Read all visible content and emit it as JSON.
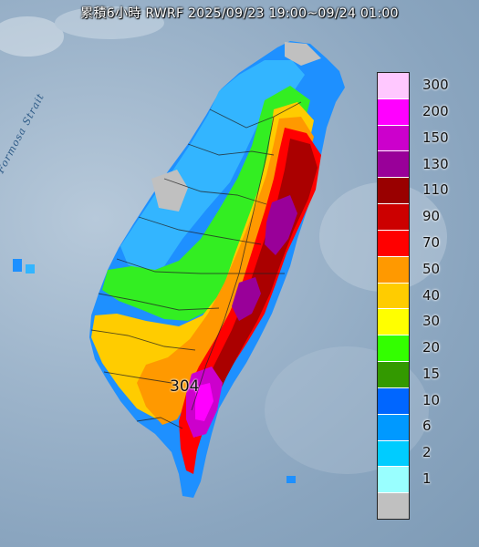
{
  "title": "累積6小時 RWRF 2025/09/23 19:00~09/24 01:00",
  "strait_label": "Formosa Strait",
  "max_value_label": "304",
  "legend": [
    {
      "label": "300",
      "color": "#ffc8ff"
    },
    {
      "label": "200",
      "color": "#ff00ff"
    },
    {
      "label": "150",
      "color": "#cc00cc"
    },
    {
      "label": "130",
      "color": "#990099"
    },
    {
      "label": "110",
      "color": "#990000"
    },
    {
      "label": "90",
      "color": "#cc0000"
    },
    {
      "label": "70",
      "color": "#ff0000"
    },
    {
      "label": "50",
      "color": "#ff9900"
    },
    {
      "label": "40",
      "color": "#ffcc00"
    },
    {
      "label": "30",
      "color": "#ffff00"
    },
    {
      "label": "20",
      "color": "#33ff00"
    },
    {
      "label": "15",
      "color": "#339900"
    },
    {
      "label": "10",
      "color": "#0066ff"
    },
    {
      "label": "6",
      "color": "#0099ff"
    },
    {
      "label": "2",
      "color": "#00ccff"
    },
    {
      "label": "1",
      "color": "#99ffff"
    },
    {
      "label": "",
      "color": "#c0c0c0"
    }
  ]
}
